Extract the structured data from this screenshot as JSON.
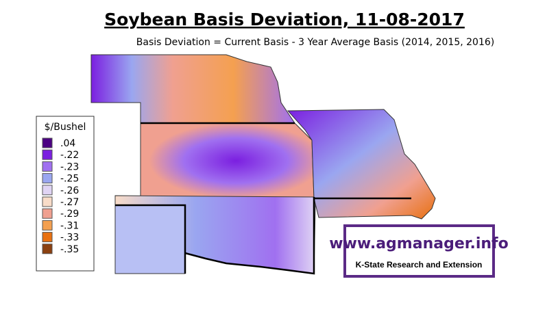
{
  "header": {
    "title": "Soybean Basis Deviation, 11-08-2017",
    "subtitle": "Basis Deviation = Current Basis - 3 Year Average Basis (2014, 2015, 2016)"
  },
  "legend": {
    "title": "$/Bushel",
    "items": [
      {
        "label": ".04",
        "color": "#4b0082"
      },
      {
        "label": "-.22",
        "color": "#7b1fe0"
      },
      {
        "label": "-.23",
        "color": "#a070f0"
      },
      {
        "label": "-.25",
        "color": "#9aa6f0"
      },
      {
        "label": "-.26",
        "color": "#e0d4f4"
      },
      {
        "label": "-.27",
        "color": "#f8dcc8"
      },
      {
        "label": "-.29",
        "color": "#f0a090"
      },
      {
        "label": "-.31",
        "color": "#f4a050"
      },
      {
        "label": "-.33",
        "color": "#e87010"
      },
      {
        "label": "-.35",
        "color": "#8b4010"
      }
    ]
  },
  "logo": {
    "url": "www.agmanager.info",
    "org": "K-State Research and Extension"
  }
}
